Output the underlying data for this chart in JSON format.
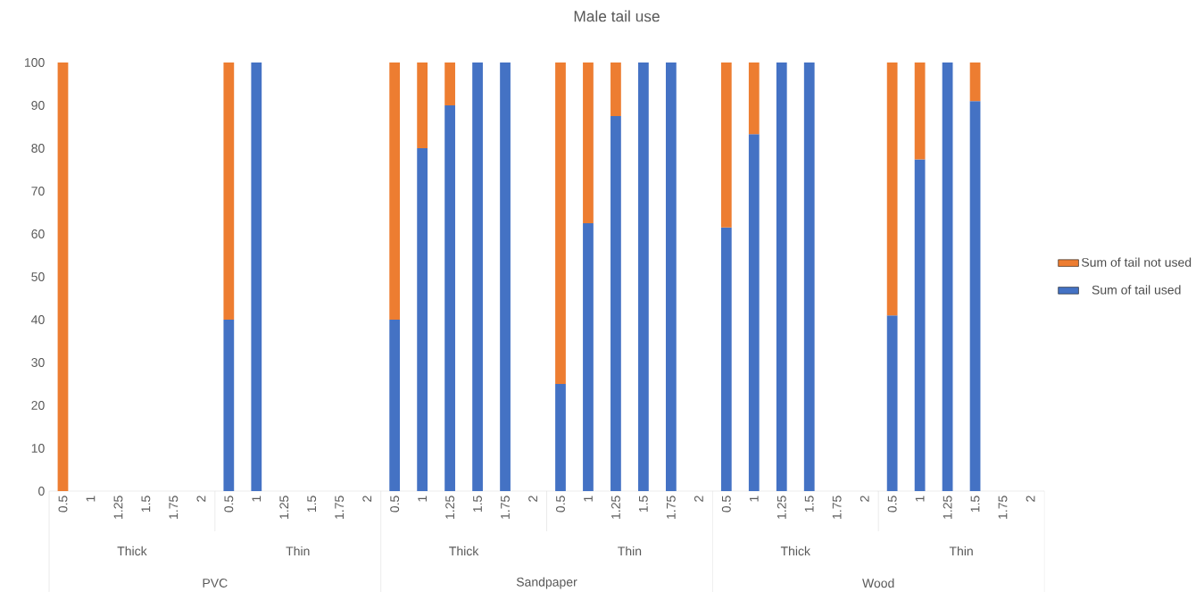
{
  "chart_data": {
    "type": "bar",
    "stacked": true,
    "title": "Male tail use",
    "categories": [
      "0.5",
      "1",
      "1.25",
      "1.5",
      "1.75",
      "2",
      "0.5",
      "1",
      "1.25",
      "1.5",
      "1.75",
      "2",
      "0.5",
      "1",
      "1.25",
      "1.5",
      "1.75",
      "2",
      "0.5",
      "1",
      "1.25",
      "1.5",
      "1.75",
      "2",
      "0.5",
      "1",
      "1.25",
      "1.5",
      "1.75",
      "2",
      "0.5",
      "1",
      "1.25",
      "1.5",
      "1.75",
      "2"
    ],
    "series": [
      {
        "name": "Sum of tail used",
        "color": "#4472c4",
        "values": [
          0,
          null,
          null,
          null,
          null,
          null,
          40,
          100,
          null,
          null,
          null,
          null,
          40,
          80,
          90,
          100,
          100,
          null,
          25,
          62.5,
          87.5,
          100,
          100,
          null,
          61.5,
          83.3,
          100,
          100,
          null,
          null,
          41,
          77.4,
          100,
          91,
          null,
          null
        ]
      },
      {
        "name": "Sum of tail not used",
        "color": "#ed7d31",
        "values": [
          100,
          null,
          null,
          null,
          null,
          null,
          60,
          0,
          null,
          null,
          null,
          null,
          60,
          20,
          10,
          0,
          0,
          null,
          75,
          37.5,
          12.5,
          0,
          0,
          null,
          38.5,
          16.7,
          0,
          0,
          null,
          null,
          59,
          22.6,
          0,
          9,
          null,
          null
        ]
      }
    ],
    "annotations": [
      "Thick",
      "Thin",
      "Thick",
      "Thin",
      "Thick",
      "Thin",
      "PVC",
      "Sandpaper",
      "Wood"
    ],
    "ylim": [
      0,
      100
    ],
    "yticks": [
      0,
      10,
      20,
      30,
      40,
      50,
      60,
      70,
      80,
      90,
      100
    ],
    "legend": "right"
  }
}
